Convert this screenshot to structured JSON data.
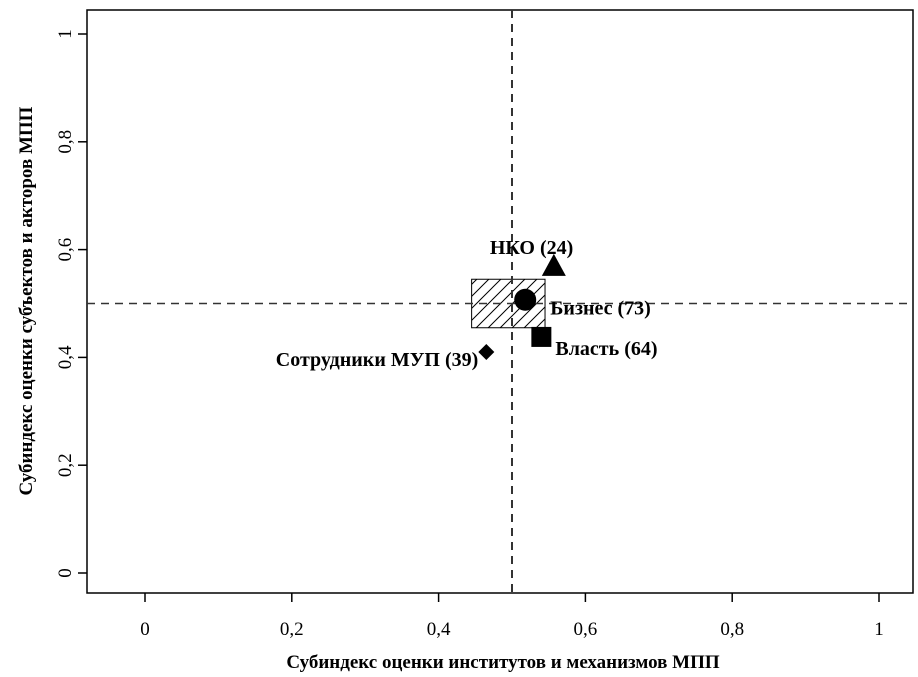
{
  "chart_data": {
    "type": "scatter",
    "xlabel": "Субиндекс оценки институтов и механизмов МПП",
    "ylabel": "Субиндекс оценки субъектов и акторов МПП",
    "xlim": [
      -0.08,
      1.05
    ],
    "ylim": [
      -0.05,
      1.05
    ],
    "x_ticks": [
      0,
      0.2,
      0.4,
      0.6,
      0.8,
      1
    ],
    "y_ticks": [
      0,
      0.2,
      0.4,
      0.6,
      0.8,
      1
    ],
    "x_tick_labels": [
      "0",
      "0,2",
      "0,4",
      "0,6",
      "0,8",
      "1"
    ],
    "y_tick_labels": [
      "0",
      "0,2",
      "0,4",
      "0,6",
      "0,8",
      "1"
    ],
    "grid": false,
    "reference_lines": {
      "x": 0.5,
      "y": 0.5,
      "style": "dashed"
    },
    "hatched_region": {
      "x": [
        0.445,
        0.545
      ],
      "y": [
        0.455,
        0.545
      ]
    },
    "points": [
      {
        "label": "НКО (24)",
        "x": 0.557,
        "y": 0.568,
        "marker": "triangle"
      },
      {
        "label": "Бизнес (73)",
        "x": 0.518,
        "y": 0.507,
        "marker": "circle"
      },
      {
        "label": "Власть (64)",
        "x": 0.54,
        "y": 0.438,
        "marker": "square"
      },
      {
        "label": "Сотрудники МУП (39)",
        "x": 0.465,
        "y": 0.41,
        "marker": "diamond"
      }
    ]
  }
}
